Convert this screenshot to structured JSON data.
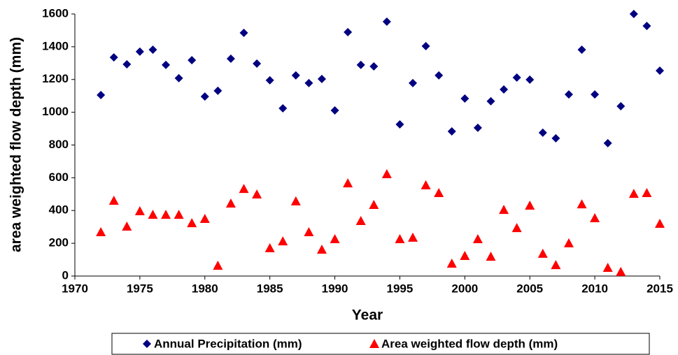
{
  "chart_data": {
    "type": "scatter",
    "x_label": "Year",
    "y_label": "area weighted flow depth (mm)",
    "x": [
      1972,
      1973,
      1974,
      1975,
      1976,
      1977,
      1978,
      1979,
      1980,
      1981,
      1982,
      1983,
      1984,
      1985,
      1986,
      1987,
      1988,
      1989,
      1990,
      1991,
      1992,
      1993,
      1994,
      1995,
      1996,
      1997,
      1998,
      1999,
      2000,
      2001,
      2002,
      2003,
      2004,
      2005,
      2006,
      2007,
      2008,
      2009,
      2010,
      2011,
      2012,
      2013,
      2014,
      2015
    ],
    "series": [
      {
        "name": "Annual Precipitation (mm)",
        "color": "#000080",
        "marker": "diamond",
        "values": [
          1105,
          1335,
          1293,
          1370,
          1382,
          1289,
          1208,
          1318,
          1096,
          1131,
          1327,
          1485,
          1297,
          1195,
          1024,
          1225,
          1178,
          1203,
          1011,
          1489,
          1289,
          1280,
          1553,
          926,
          1178,
          1404,
          1225,
          883,
          1084,
          905,
          1067,
          1139,
          1212,
          1199,
          875,
          841,
          1109,
          1382,
          1109,
          811,
          1037,
          1600,
          1527,
          1254
        ]
      },
      {
        "name": "Area weighted flow depth (mm)",
        "color": "#ff0000",
        "marker": "triangle",
        "values": [
          269,
          461,
          303,
          397,
          375,
          375,
          375,
          324,
          350,
          64,
          444,
          533,
          499,
          171,
          213,
          457,
          269,
          162,
          226,
          567,
          337,
          435,
          623,
          226,
          235,
          555,
          508,
          77,
          124,
          226,
          119,
          405,
          294,
          431,
          137,
          68,
          201,
          439,
          354,
          51,
          26,
          503,
          508,
          320
        ]
      }
    ],
    "xlim": [
      1970,
      2015
    ],
    "xticks": [
      1970,
      1975,
      1980,
      1985,
      1990,
      1995,
      2000,
      2005,
      2010,
      2015
    ],
    "ylim": [
      0,
      1600
    ],
    "yticks": [
      0,
      200,
      400,
      600,
      800,
      1000,
      1200,
      1400,
      1600
    ],
    "grid": false,
    "legend": "bottom"
  }
}
